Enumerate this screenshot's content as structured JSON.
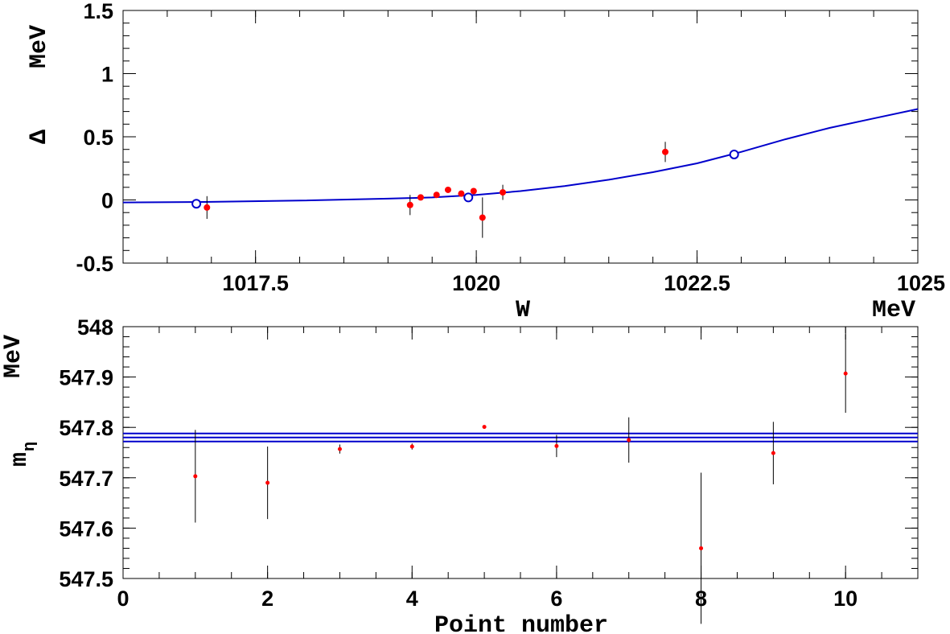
{
  "colors": {
    "data_point": "#ff0000",
    "fit": "#0000cc",
    "axis": "#000000"
  },
  "chart_data": [
    {
      "type": "scatter",
      "title": "",
      "xlabel": "W",
      "xunit": "MeV",
      "ylabel": "Δ",
      "yunit": "MeV",
      "xlim": [
        1016.0,
        1025.0
      ],
      "ylim": [
        -0.5,
        1.5
      ],
      "grid": false,
      "xticks": [
        1017.5,
        1020,
        1022.5,
        1025
      ],
      "xtick_labels": [
        "1017.5",
        "1020",
        "1022.5",
        "1025"
      ],
      "yticks": [
        -0.5,
        0,
        0.5,
        1,
        1.5
      ],
      "ytick_labels": [
        "-0.5",
        "0",
        "0.5",
        "1",
        "1.5"
      ],
      "series": [
        {
          "marker": "filled-circle",
          "color": "#ff0000",
          "points": [
            {
              "x": 1016.95,
              "y": -0.06,
              "err": 0.09
            },
            {
              "x": 1019.25,
              "y": -0.04,
              "err": 0.08
            },
            {
              "x": 1019.37,
              "y": 0.02,
              "err": 0.0
            },
            {
              "x": 1019.55,
              "y": 0.04,
              "err": 0.0
            },
            {
              "x": 1019.68,
              "y": 0.08,
              "err": 0.0
            },
            {
              "x": 1019.83,
              "y": 0.05,
              "err": 0.0
            },
            {
              "x": 1019.97,
              "y": 0.07,
              "err": 0.0
            },
            {
              "x": 1020.07,
              "y": -0.14,
              "err": 0.16
            },
            {
              "x": 1020.3,
              "y": 0.06,
              "err": 0.06
            },
            {
              "x": 1022.14,
              "y": 0.38,
              "err": 0.08
            }
          ]
        },
        {
          "marker": "open-circle",
          "color": "#0000cc",
          "points": [
            {
              "x": 1016.83,
              "y": -0.03
            },
            {
              "x": 1019.91,
              "y": 0.02
            },
            {
              "x": 1022.92,
              "y": 0.36
            }
          ]
        },
        {
          "marker": "line",
          "color": "#0000cc",
          "points": [
            {
              "x": 1016.0,
              "y": -0.02
            },
            {
              "x": 1017.0,
              "y": -0.015
            },
            {
              "x": 1018.0,
              "y": -0.005
            },
            {
              "x": 1019.0,
              "y": 0.01
            },
            {
              "x": 1019.5,
              "y": 0.02
            },
            {
              "x": 1020.0,
              "y": 0.04
            },
            {
              "x": 1020.5,
              "y": 0.07
            },
            {
              "x": 1021.0,
              "y": 0.11
            },
            {
              "x": 1021.5,
              "y": 0.16
            },
            {
              "x": 1022.0,
              "y": 0.22
            },
            {
              "x": 1022.5,
              "y": 0.29
            },
            {
              "x": 1023.0,
              "y": 0.38
            },
            {
              "x": 1023.5,
              "y": 0.48
            },
            {
              "x": 1024.0,
              "y": 0.57
            },
            {
              "x": 1024.5,
              "y": 0.645
            },
            {
              "x": 1025.0,
              "y": 0.72
            }
          ]
        }
      ]
    },
    {
      "type": "scatter",
      "title": "",
      "xlabel": "Point number",
      "ylabel": "m",
      "ylabel_subscript": "η",
      "yunit": "MeV",
      "xlim": [
        0,
        11
      ],
      "ylim": [
        547.5,
        548.0
      ],
      "grid": false,
      "xticks": [
        0,
        2,
        4,
        6,
        8,
        10
      ],
      "xtick_labels": [
        "0",
        "2",
        "4",
        "6",
        "8",
        "10"
      ],
      "yticks": [
        547.5,
        547.6,
        547.7,
        547.8,
        547.9,
        548.0
      ],
      "ytick_labels": [
        "547.5",
        "547.6",
        "547.7",
        "547.8",
        "547.9",
        "548"
      ],
      "series": [
        {
          "marker": "filled-circle",
          "color": "#ff0000",
          "points": [
            {
              "x": 1,
              "y": 547.703,
              "err": 0.092
            },
            {
              "x": 2,
              "y": 547.69,
              "err": 0.072
            },
            {
              "x": 3,
              "y": 547.757,
              "err": 0.009
            },
            {
              "x": 4,
              "y": 547.762,
              "err": 0.006
            },
            {
              "x": 5,
              "y": 547.801,
              "err": 0.003
            },
            {
              "x": 6,
              "y": 547.763,
              "err": 0.022
            },
            {
              "x": 7,
              "y": 547.775,
              "err": 0.045
            },
            {
              "x": 8,
              "y": 547.56,
              "err": 0.15
            },
            {
              "x": 9,
              "y": 547.749,
              "err": 0.062
            },
            {
              "x": 10,
              "y": 547.907,
              "err": 0.078
            }
          ]
        }
      ],
      "hlines": [
        {
          "y": 547.788,
          "color": "#0000cc"
        },
        {
          "y": 547.78,
          "color": "#0000cc"
        },
        {
          "y": 547.772,
          "color": "#0000cc"
        }
      ]
    }
  ]
}
